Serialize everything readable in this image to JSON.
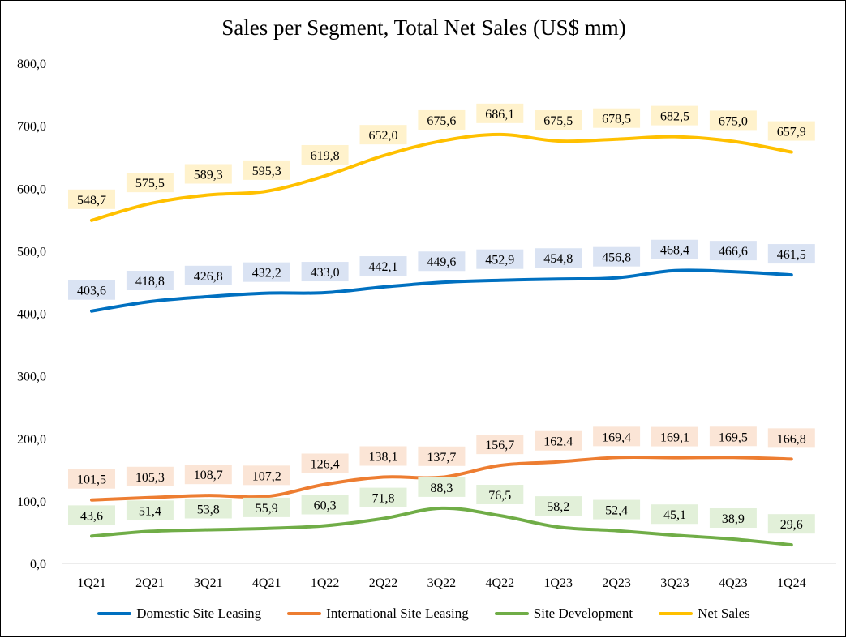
{
  "chart_data": {
    "type": "line",
    "title": "Sales per Segment, Total Net Sales (US$ mm)",
    "categories": [
      "1Q21",
      "2Q21",
      "3Q21",
      "4Q21",
      "1Q22",
      "2Q22",
      "3Q22",
      "4Q22",
      "1Q23",
      "2Q23",
      "3Q23",
      "4Q23",
      "1Q24"
    ],
    "ylim": [
      0,
      800
    ],
    "yticks": [
      "0,0",
      "100,0",
      "200,0",
      "300,0",
      "400,0",
      "500,0",
      "600,0",
      "700,0",
      "800,0"
    ],
    "grid": false,
    "legend_position": "bottom",
    "series": [
      {
        "name": "Domestic Site Leasing",
        "color": "#0070C0",
        "label_bg": "#DAE3F3",
        "values": [
          403.6,
          418.8,
          426.8,
          432.2,
          433.0,
          442.1,
          449.6,
          452.9,
          454.8,
          456.8,
          468.4,
          466.6,
          461.5
        ],
        "labels": [
          "403,6",
          "418,8",
          "426,8",
          "432,2",
          "433,0",
          "442,1",
          "449,6",
          "452,9",
          "454,8",
          "456,8",
          "468,4",
          "466,6",
          "461,5"
        ]
      },
      {
        "name": "International Site Leasing",
        "color": "#ED7D31",
        "label_bg": "#FBE5D6",
        "values": [
          101.5,
          105.3,
          108.7,
          107.2,
          126.4,
          138.1,
          137.7,
          156.7,
          162.4,
          169.4,
          169.1,
          169.5,
          166.8
        ],
        "labels": [
          "101,5",
          "105,3",
          "108,7",
          "107,2",
          "126,4",
          "138,1",
          "137,7",
          "156,7",
          "162,4",
          "169,4",
          "169,1",
          "169,5",
          "166,8"
        ]
      },
      {
        "name": "Site Development",
        "color": "#70AD47",
        "label_bg": "#E2F0D9",
        "values": [
          43.6,
          51.4,
          53.8,
          55.9,
          60.3,
          71.8,
          88.3,
          76.5,
          58.2,
          52.4,
          45.1,
          38.9,
          29.6
        ],
        "labels": [
          "43,6",
          "51,4",
          "53,8",
          "55,9",
          "60,3",
          "71,8",
          "88,3",
          "76,5",
          "58,2",
          "52,4",
          "45,1",
          "38,9",
          "29,6"
        ]
      },
      {
        "name": "Net Sales",
        "color": "#FFC000",
        "label_bg": "#FFF2CC",
        "values": [
          548.7,
          575.5,
          589.3,
          595.3,
          619.8,
          652.0,
          675.6,
          686.1,
          675.5,
          678.5,
          682.5,
          675.0,
          657.9
        ],
        "labels": [
          "548,7",
          "575,5",
          "589,3",
          "595,3",
          "619,8",
          "652,0",
          "675,6",
          "686,1",
          "675,5",
          "678,5",
          "682,5",
          "675,0",
          "657,9"
        ]
      }
    ]
  }
}
